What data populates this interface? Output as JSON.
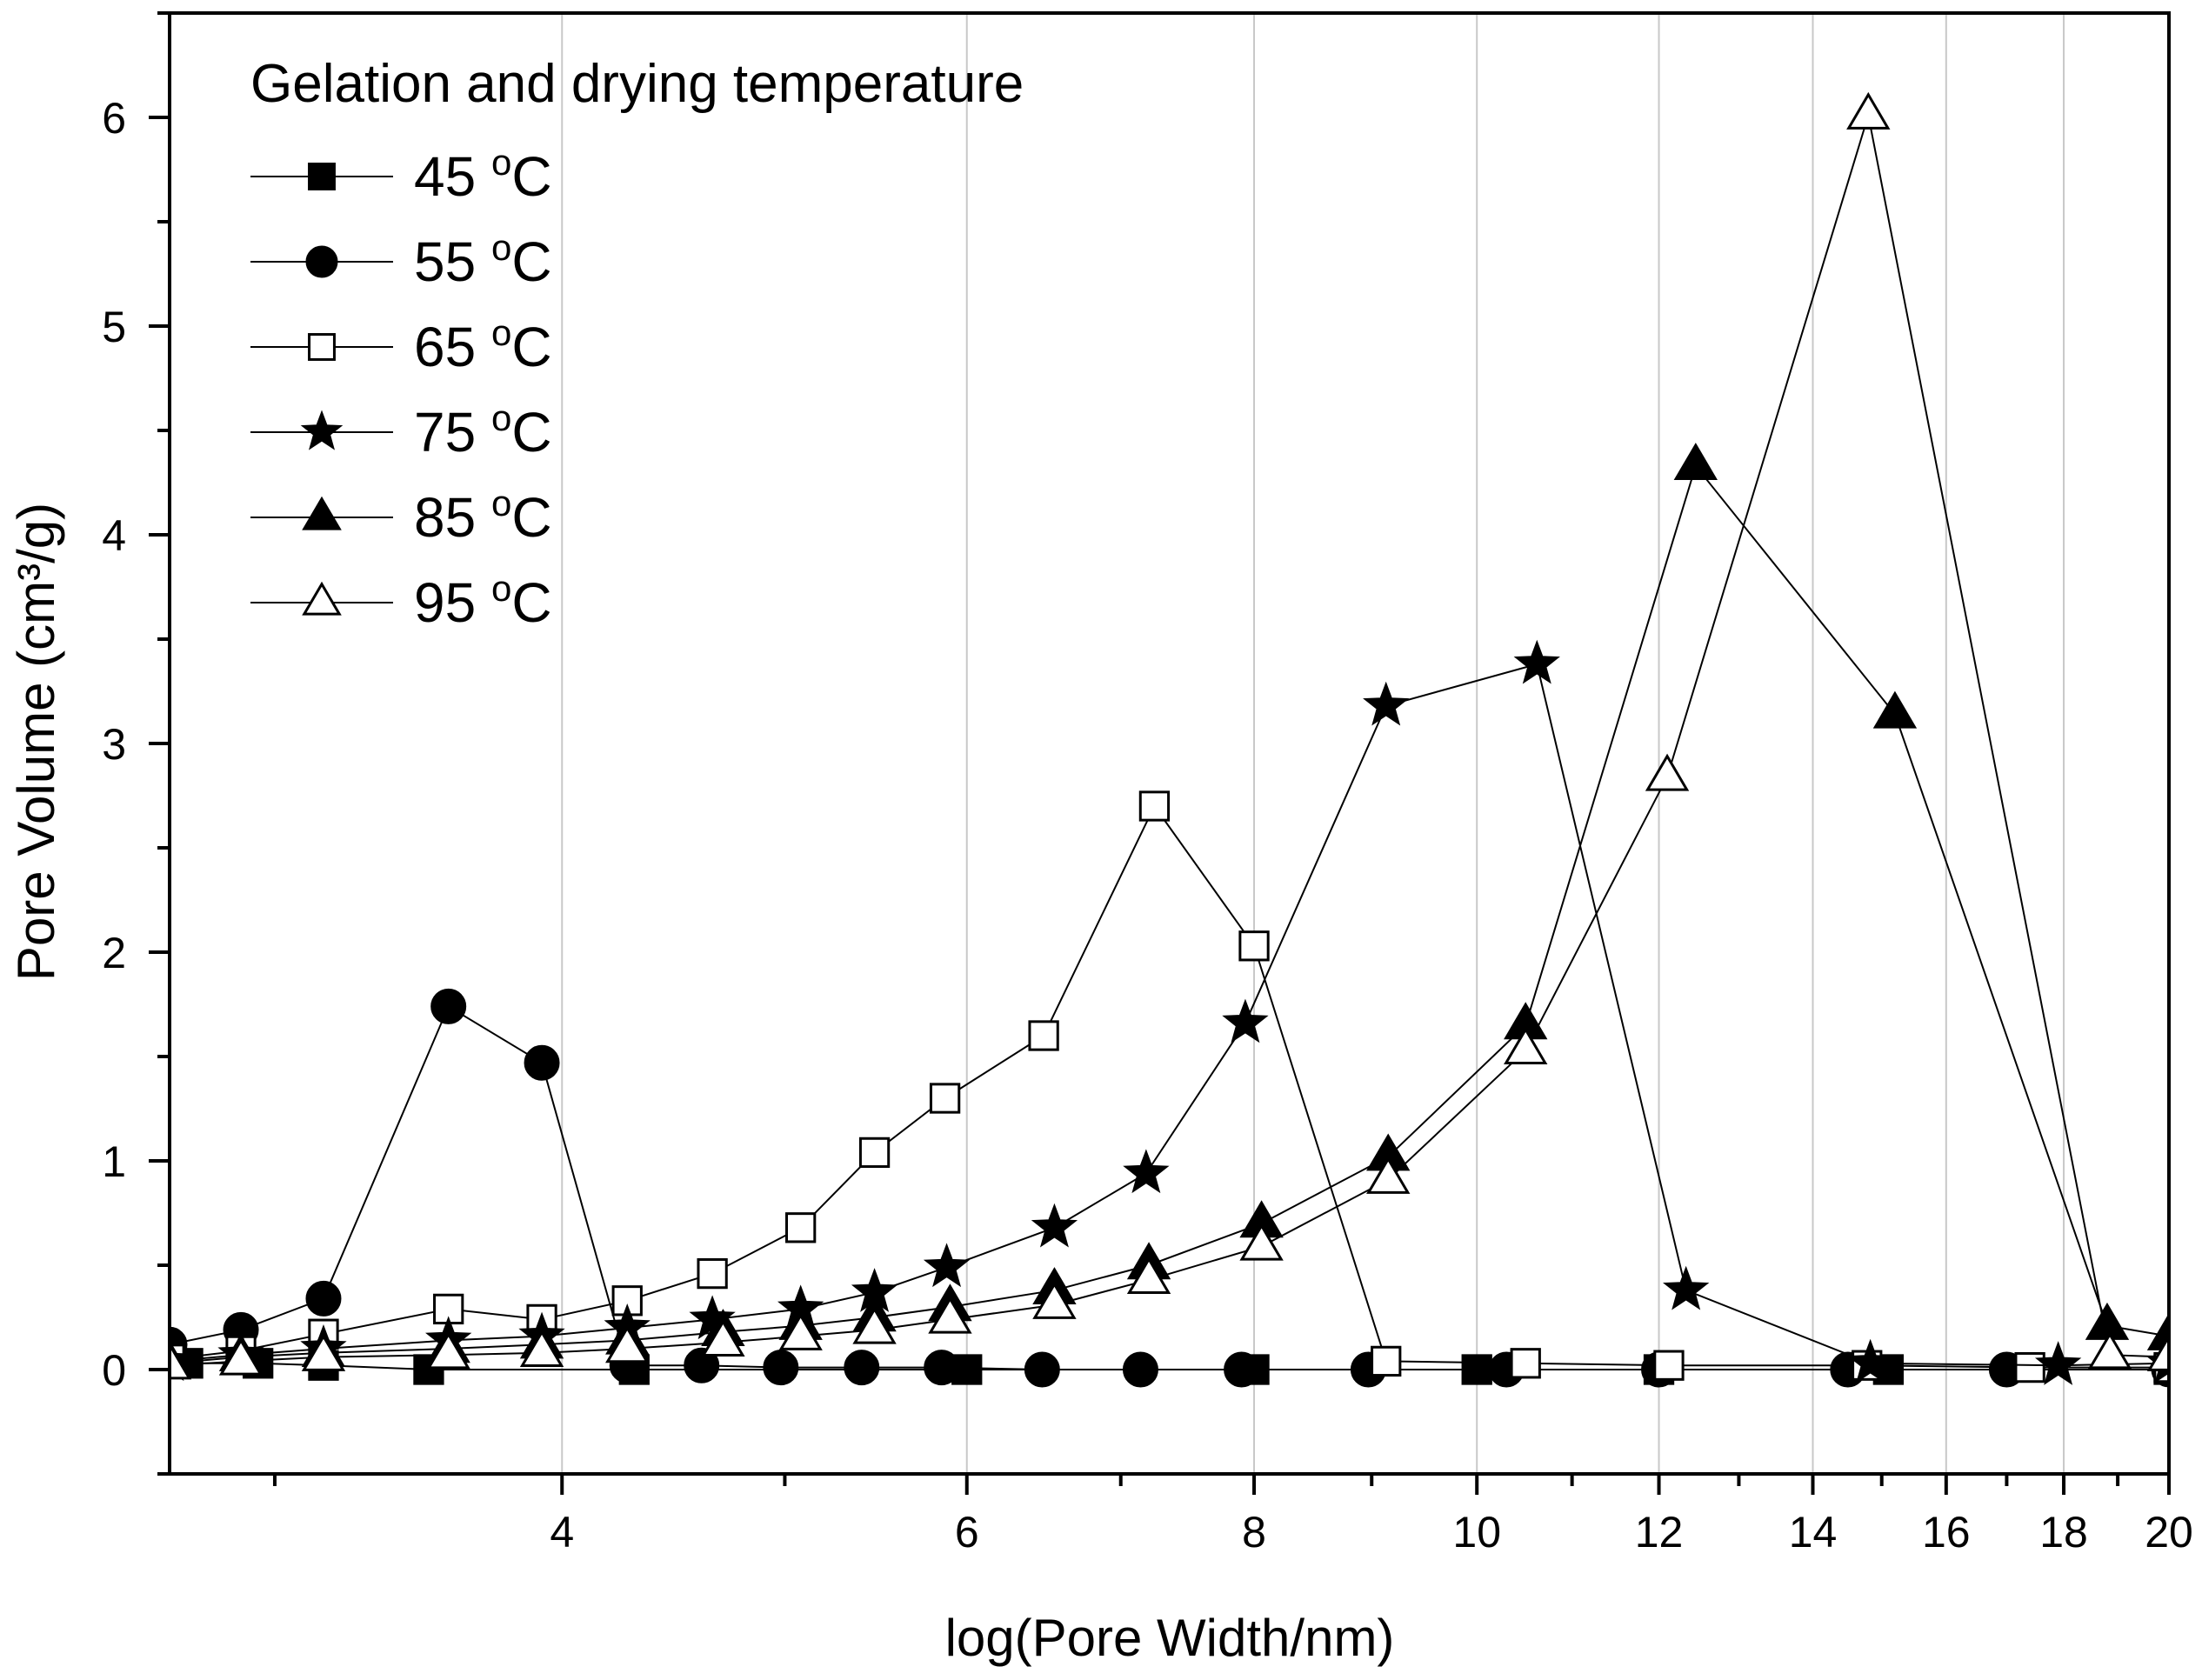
{
  "chart_data": {
    "type": "line",
    "title": "",
    "xlabel": "log(Pore Width/nm)",
    "ylabel": "Pore Volume (cm³/g)",
    "xscale": "log",
    "xlim": [
      2.7,
      20
    ],
    "ylim": [
      -0.5,
      6.5
    ],
    "x_ticks": [
      4,
      6,
      8,
      10,
      12,
      14,
      16,
      18,
      20
    ],
    "x_tick_labels": [
      "4",
      "6",
      "8",
      "10",
      "12",
      "14",
      "16",
      "18",
      "20"
    ],
    "y_ticks": [
      0,
      1,
      2,
      3,
      4,
      5,
      6
    ],
    "y_tick_labels": [
      "0",
      "1",
      "2",
      "3",
      "4",
      "5",
      "6"
    ],
    "grid": "vertical",
    "legend": {
      "title": "Gelation and drying temperature",
      "position": "top-left",
      "unit_prefix": "o",
      "unit_suffix": "C"
    },
    "series": [
      {
        "name": "45",
        "marker": "square-filled",
        "points": [
          [
            2.75,
            0.03
          ],
          [
            2.95,
            0.03
          ],
          [
            3.15,
            0.02
          ],
          [
            3.5,
            0.0
          ],
          [
            4.3,
            0.0
          ],
          [
            6.0,
            0.0
          ],
          [
            8.0,
            0.0
          ],
          [
            10.0,
            0.0
          ],
          [
            12.0,
            0.0
          ],
          [
            15.1,
            0.0
          ],
          [
            20.0,
            0.0
          ]
        ]
      },
      {
        "name": "55",
        "marker": "circle-filled",
        "points": [
          [
            2.7,
            0.12
          ],
          [
            2.9,
            0.19
          ],
          [
            3.15,
            0.34
          ],
          [
            3.57,
            1.74
          ],
          [
            3.92,
            1.47
          ],
          [
            4.27,
            0.02
          ],
          [
            4.6,
            0.02
          ],
          [
            4.98,
            0.01
          ],
          [
            5.4,
            0.01
          ],
          [
            5.85,
            0.01
          ],
          [
            6.47,
            0.0
          ],
          [
            7.14,
            0.0
          ],
          [
            7.9,
            0.0
          ],
          [
            8.97,
            0.0
          ],
          [
            10.3,
            0.0
          ],
          [
            12.0,
            0.0
          ],
          [
            14.5,
            0.0
          ],
          [
            17.0,
            0.0
          ],
          [
            20.0,
            0.0
          ]
        ]
      },
      {
        "name": "65",
        "marker": "square-open",
        "points": [
          [
            2.7,
            0.05
          ],
          [
            2.9,
            0.09
          ],
          [
            3.15,
            0.17
          ],
          [
            3.57,
            0.29
          ],
          [
            3.92,
            0.24
          ],
          [
            4.27,
            0.33
          ],
          [
            4.65,
            0.46
          ],
          [
            5.08,
            0.68
          ],
          [
            5.47,
            1.04
          ],
          [
            5.87,
            1.3
          ],
          [
            6.48,
            1.6
          ],
          [
            7.24,
            2.7
          ],
          [
            8.0,
            2.03
          ],
          [
            9.13,
            0.04
          ],
          [
            10.5,
            0.03
          ],
          [
            12.12,
            0.02
          ],
          [
            14.78,
            0.02
          ],
          [
            17.4,
            0.01
          ],
          [
            20.0,
            0.01
          ]
        ]
      },
      {
        "name": "75",
        "marker": "star-filled",
        "points": [
          [
            2.7,
            0.04
          ],
          [
            2.9,
            0.07
          ],
          [
            3.15,
            0.1
          ],
          [
            3.57,
            0.14
          ],
          [
            3.92,
            0.16
          ],
          [
            4.27,
            0.2
          ],
          [
            4.65,
            0.24
          ],
          [
            5.08,
            0.29
          ],
          [
            5.47,
            0.37
          ],
          [
            5.88,
            0.49
          ],
          [
            6.55,
            0.68
          ],
          [
            7.18,
            0.94
          ],
          [
            7.93,
            1.66
          ],
          [
            9.13,
            3.18
          ],
          [
            10.62,
            3.38
          ],
          [
            12.33,
            0.38
          ],
          [
            14.83,
            0.03
          ],
          [
            17.9,
            0.02
          ],
          [
            20.0,
            0.03
          ]
        ]
      },
      {
        "name": "85",
        "marker": "triangle-filled",
        "points": [
          [
            2.7,
            0.03
          ],
          [
            2.9,
            0.06
          ],
          [
            3.15,
            0.08
          ],
          [
            3.57,
            0.1
          ],
          [
            3.92,
            0.12
          ],
          [
            4.27,
            0.14
          ],
          [
            4.7,
            0.18
          ],
          [
            5.08,
            0.21
          ],
          [
            5.47,
            0.25
          ],
          [
            5.9,
            0.3
          ],
          [
            6.55,
            0.38
          ],
          [
            7.2,
            0.5
          ],
          [
            8.06,
            0.7
          ],
          [
            9.15,
            1.02
          ],
          [
            10.5,
            1.65
          ],
          [
            12.45,
            4.33
          ],
          [
            15.2,
            3.14
          ],
          [
            18.8,
            0.21
          ],
          [
            20.0,
            0.16
          ]
        ]
      },
      {
        "name": "95",
        "marker": "triangle-open",
        "points": [
          [
            2.7,
            0.02
          ],
          [
            2.9,
            0.04
          ],
          [
            3.15,
            0.06
          ],
          [
            3.57,
            0.07
          ],
          [
            3.92,
            0.08
          ],
          [
            4.27,
            0.1
          ],
          [
            4.7,
            0.13
          ],
          [
            5.08,
            0.16
          ],
          [
            5.47,
            0.19
          ],
          [
            5.9,
            0.24
          ],
          [
            6.55,
            0.31
          ],
          [
            7.2,
            0.43
          ],
          [
            8.06,
            0.59
          ],
          [
            9.15,
            0.91
          ],
          [
            10.5,
            1.53
          ],
          [
            12.1,
            2.84
          ],
          [
            14.8,
            6.01
          ],
          [
            18.85,
            0.07
          ],
          [
            20.0,
            0.06
          ]
        ]
      }
    ]
  }
}
